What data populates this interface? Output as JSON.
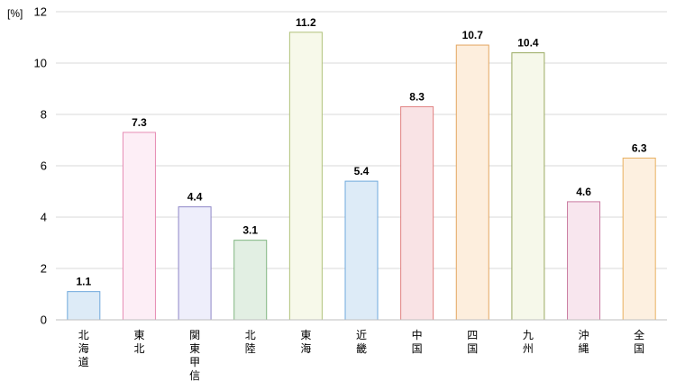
{
  "chart_data": {
    "type": "bar",
    "title": "",
    "xlabel": "",
    "ylabel": "",
    "y_unit_label": "[%]",
    "ylim": [
      0,
      12
    ],
    "y_ticks": [
      "0",
      "2",
      "4",
      "6",
      "8",
      "10",
      "12"
    ],
    "grid": "horizontal",
    "legend": "none",
    "categories": [
      "北海道",
      "東北",
      "関東甲信",
      "北陸",
      "東海",
      "近畿",
      "中国",
      "四国",
      "九州",
      "沖縄",
      "全国"
    ],
    "values": [
      1.1,
      7.3,
      4.4,
      3.1,
      11.2,
      5.4,
      8.3,
      10.7,
      10.4,
      4.6,
      6.3
    ],
    "value_labels": [
      "1.1",
      "7.3",
      "4.4",
      "3.1",
      "11.2",
      "5.4",
      "8.3",
      "10.7",
      "10.4",
      "4.6",
      "6.3"
    ],
    "bar_fills": [
      "#ddebf7",
      "#fdeef6",
      "#eeeefb",
      "#e2efe3",
      "#f7f9ea",
      "#ddebf7",
      "#f9e3e5",
      "#fdeedd",
      "#f6f8ea",
      "#f8e6ee",
      "#fdf0e0"
    ],
    "bar_strokes": [
      "#6fa8dc",
      "#e68cb4",
      "#8e86c8",
      "#7fb57f",
      "#b0c27a",
      "#6fa8dc",
      "#e08080",
      "#e3a660",
      "#9aaa62",
      "#c97aa0",
      "#e8b060"
    ]
  }
}
